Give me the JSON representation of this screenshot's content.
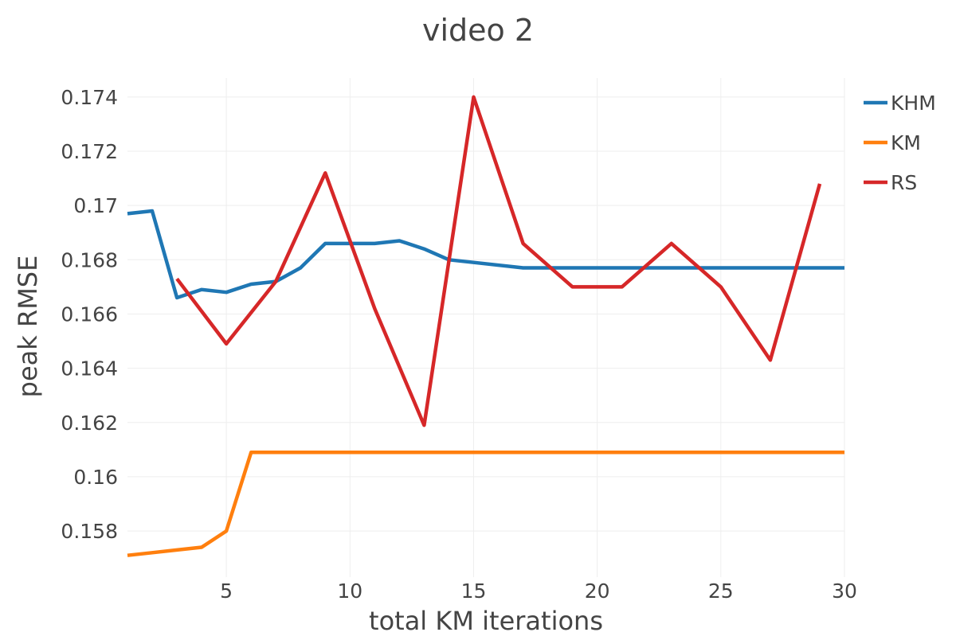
{
  "chart_data": {
    "type": "line",
    "title": "video 2",
    "xlabel": "total KM iterations",
    "ylabel": "peak RMSE",
    "xlim": [
      1,
      30
    ],
    "ylim": [
      0.1563,
      0.1747
    ],
    "x_ticks": [
      5,
      10,
      15,
      20,
      25,
      30
    ],
    "x_tick_labels": [
      "5",
      "10",
      "15",
      "20",
      "25",
      "30"
    ],
    "y_ticks": [
      0.158,
      0.16,
      0.162,
      0.164,
      0.166,
      0.168,
      0.17,
      0.172,
      0.174
    ],
    "y_tick_labels": [
      "0.158",
      "0.16",
      "0.162",
      "0.164",
      "0.166",
      "0.168",
      "0.17",
      "0.172",
      "0.174"
    ],
    "grid": true,
    "legend_position": "top-right",
    "series": [
      {
        "name": "KHM",
        "color": "#1f77b4",
        "x": [
          1,
          2,
          3,
          4,
          5,
          6,
          7,
          8,
          9,
          10,
          11,
          12,
          13,
          14,
          15,
          17,
          19,
          21,
          23,
          25,
          27,
          29,
          30
        ],
        "y": [
          0.1697,
          0.1698,
          0.1666,
          0.1669,
          0.1668,
          0.1671,
          0.1672,
          0.1677,
          0.1686,
          0.1686,
          0.1686,
          0.1687,
          0.1684,
          0.168,
          0.1679,
          0.1677,
          0.1677,
          0.1677,
          0.1677,
          0.1677,
          0.1677,
          0.1677,
          0.1677
        ]
      },
      {
        "name": "KM",
        "color": "#ff7f0e",
        "x": [
          1,
          2,
          3,
          4,
          5,
          6,
          7,
          10,
          15,
          20,
          25,
          30
        ],
        "y": [
          0.1571,
          0.1572,
          0.1573,
          0.1574,
          0.158,
          0.1609,
          0.1609,
          0.1609,
          0.1609,
          0.1609,
          0.1609,
          0.1609
        ]
      },
      {
        "name": "RS",
        "color": "#d62728",
        "x": [
          3,
          5,
          7,
          9,
          11,
          13,
          15,
          17,
          19,
          21,
          23,
          25,
          27,
          29
        ],
        "y": [
          0.1673,
          0.1649,
          0.1672,
          0.1712,
          0.1662,
          0.1619,
          0.174,
          0.1686,
          0.167,
          0.167,
          0.1686,
          0.167,
          0.1643,
          0.1708
        ]
      }
    ]
  }
}
